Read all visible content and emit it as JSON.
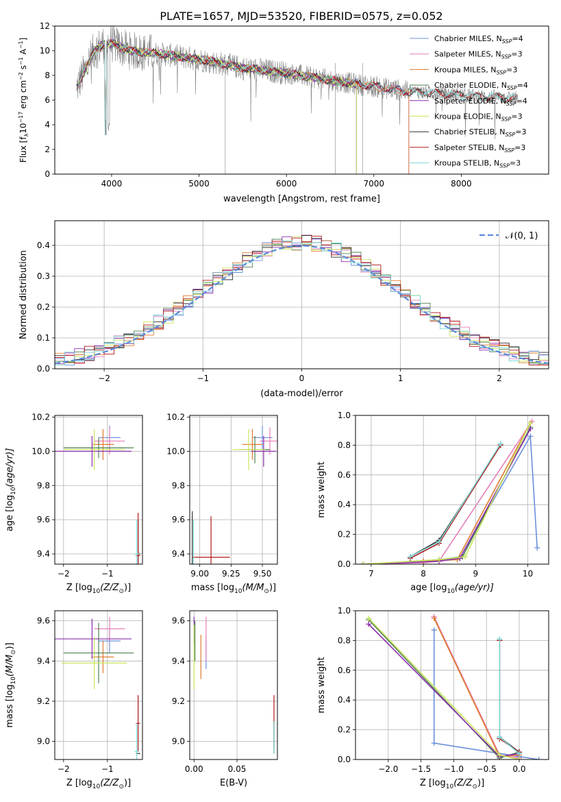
{
  "figure_title": "PLATE=1657, MJD=53520, FIBERID=0575, z=0.052",
  "colors": {
    "Chabrier MILES": "#6a8fdc",
    "Salpeter MILES": "#e67fb8",
    "Kroupa MILES": "#e07a2e",
    "Chabrier ELODIE": "#4f7f4f",
    "Salpeter ELODIE": "#8c2fb0",
    "Kroupa ELODIE": "#c8e65a",
    "Chabrier STELIB": "#2f2f2f",
    "Salpeter STELIB": "#b01515",
    "Kroupa STELIB": "#7dd8d8",
    "data": "#808080",
    "normal": "#5b8bd8"
  },
  "chart_data": [
    {
      "id": "spectrum",
      "type": "line",
      "xlabel": "wavelength [Angstrom, rest frame]",
      "ylabel_main": "Flux [f",
      "ylabel_sub": "λ",
      "ylabel_mid": "10",
      "ylabel_sup": "−17",
      "ylabel_tail": " erg cm",
      "ylabel_sup2": "−2",
      "ylabel_tail2": " s",
      "ylabel_sup3": "−1",
      "ylabel_tail3": " A",
      "ylabel_sup4": "−1",
      "ylabel_end": "]",
      "xlim": [
        3350,
        9000
      ],
      "ylim": [
        0,
        12
      ],
      "xticks": [
        4000,
        5000,
        6000,
        7000,
        8000
      ],
      "yticks": [
        0,
        2,
        4,
        6,
        8,
        10,
        12
      ],
      "grid": false,
      "legend_position": "top-right",
      "legend": [
        {
          "name": "Chabrier MILES",
          "n": "4"
        },
        {
          "name": "Salpeter MILES",
          "n": "3"
        },
        {
          "name": "Kroupa MILES",
          "n": "3"
        },
        {
          "name": "Chabrier ELODIE",
          "n": "4"
        },
        {
          "name": "Salpeter ELODIE",
          "n": "4"
        },
        {
          "name": "Kroupa ELODIE",
          "n": "3"
        },
        {
          "name": "Chabrier STELIB",
          "n": "3"
        },
        {
          "name": "Salpeter STELIB",
          "n": "3"
        },
        {
          "name": "Kroupa STELIB",
          "n": "3"
        }
      ],
      "continuum": {
        "x": [
          3600,
          3700,
          3800,
          3900,
          4000,
          4200,
          4500,
          5000,
          5500,
          6000,
          6500,
          7000,
          7400,
          7800,
          8200,
          8500,
          8700
        ],
        "y": [
          7.0,
          8.5,
          10.0,
          10.5,
          10.6,
          10.0,
          9.8,
          9.3,
          8.6,
          8.2,
          7.6,
          7.1,
          6.7,
          6.5,
          6.3,
          6.2,
          6.1
        ]
      }
    },
    {
      "id": "residuals",
      "type": "histogram",
      "xlabel": "(data-model)/error",
      "ylabel": "Normed distribution",
      "xlim": [
        -2.5,
        2.5
      ],
      "ylim": [
        0,
        0.48
      ],
      "xticks": [
        -2,
        -1,
        0,
        1,
        2
      ],
      "yticks": [
        0.0,
        0.1,
        0.2,
        0.3,
        0.4
      ],
      "grid": true,
      "legend_position": "top-right",
      "legend_label": "𝒩(0, 1)"
    },
    {
      "id": "age-vs-Z",
      "type": "errorbar",
      "xlabel": "Z [log",
      "xlabel_sub": "10",
      "xlabel_tail": "(Z/Z",
      "xlabel_sub2": "⊙",
      "xlabel_end": ")]",
      "ylabel": "age  [log",
      "ylabel_sub": "10",
      "ylabel_tail": "(age/yr)]",
      "xlim": [
        -2.2,
        -0.2
      ],
      "ylim": [
        9.34,
        10.21
      ],
      "xticks": [
        -2,
        -1
      ],
      "yticks": [
        9.4,
        9.6,
        9.8,
        10.0,
        10.2
      ],
      "grid": true,
      "points": [
        {
          "s": "Chabrier MILES",
          "x": -0.95,
          "xerr": 0.25,
          "y": 10.08,
          "yerr": 0.07
        },
        {
          "s": "Salpeter MILES",
          "x": -0.95,
          "xerr": 0.35,
          "y": 10.06,
          "yerr": 0.08
        },
        {
          "s": "Kroupa MILES",
          "x": -1.1,
          "xerr": 0.25,
          "y": 10.04,
          "yerr": 0.09
        },
        {
          "s": "Chabrier ELODIE",
          "x": -1.2,
          "xerr": 0.8,
          "y": 10.02,
          "yerr": 0.06
        },
        {
          "s": "Salpeter ELODIE",
          "x": -1.35,
          "xerr": 0.9,
          "y": 10.0,
          "yerr": 0.09
        },
        {
          "s": "Kroupa ELODIE",
          "x": -1.3,
          "xerr": 0.7,
          "y": 10.01,
          "yerr": 0.12
        },
        {
          "s": "Chabrier STELIB",
          "x": -0.3,
          "xerr": 0.05,
          "y": 9.4,
          "yerr": 0.2
        },
        {
          "s": "Salpeter STELIB",
          "x": -0.3,
          "xerr": 0.05,
          "y": 9.39,
          "yerr": 0.25
        },
        {
          "s": "Kroupa STELIB",
          "x": -0.33,
          "xerr": 0.05,
          "y": 9.4,
          "yerr": 0.2
        }
      ]
    },
    {
      "id": "age-vs-mass",
      "type": "errorbar",
      "xlabel": "mass [log",
      "xlabel_sub": "10",
      "xlabel_tail": "(M/M",
      "xlabel_sub2": "⊙",
      "xlabel_end": ")]",
      "xlim": [
        8.92,
        9.62
      ],
      "ylim": [
        9.34,
        10.21
      ],
      "xticks": [
        9.0,
        9.25,
        9.5
      ],
      "yticks": [
        9.4,
        9.6,
        9.8,
        10.0,
        10.2
      ],
      "grid": true,
      "points": [
        {
          "s": "Chabrier MILES",
          "x": 9.5,
          "xerr": 0.08,
          "y": 10.08,
          "yerr": 0.07
        },
        {
          "s": "Salpeter MILES",
          "x": 9.56,
          "xerr": 0.08,
          "y": 10.06,
          "yerr": 0.08
        },
        {
          "s": "Kroupa MILES",
          "x": 9.42,
          "xerr": 0.08,
          "y": 10.04,
          "yerr": 0.09
        },
        {
          "s": "Chabrier ELODIE",
          "x": 9.44,
          "xerr": 0.12,
          "y": 10.01,
          "yerr": 0.08
        },
        {
          "s": "Salpeter ELODIE",
          "x": 9.51,
          "xerr": 0.1,
          "y": 10.0,
          "yerr": 0.09
        },
        {
          "s": "Kroupa ELODIE",
          "x": 9.39,
          "xerr": 0.13,
          "y": 10.01,
          "yerr": 0.12
        },
        {
          "s": "Chabrier STELIB",
          "x": 8.94,
          "xerr": 0.0,
          "y": 9.4,
          "yerr": 0.25
        },
        {
          "s": "Salpeter STELIB",
          "x": 9.09,
          "xerr": 0.15,
          "y": 9.38,
          "yerr": 0.24
        },
        {
          "s": "Kroupa STELIB",
          "x": 8.95,
          "xerr": 0.0,
          "y": 9.4,
          "yerr": 0.2
        }
      ]
    },
    {
      "id": "mass-weight-vs-age",
      "type": "line",
      "xlabel": "age  [log",
      "xlabel_sub": "10",
      "xlabel_tail": "(age/yr)]",
      "ylabel": "mass weight",
      "xlim": [
        6.7,
        10.4
      ],
      "ylim": [
        0,
        1
      ],
      "xticks": [
        7,
        8,
        9,
        10
      ],
      "yticks": [
        0.0,
        0.2,
        0.4,
        0.6,
        0.8,
        1.0
      ],
      "grid": true,
      "series": [
        {
          "s": "Chabrier MILES",
          "x": [
            6.85,
            8.0,
            8.7,
            10.05,
            10.18
          ],
          "y": [
            0.0,
            0.02,
            0.04,
            0.86,
            0.11
          ]
        },
        {
          "s": "Salpeter MILES",
          "x": [
            6.85,
            8.0,
            8.3,
            10.08
          ],
          "y": [
            0.0,
            0.01,
            0.02,
            0.96
          ]
        },
        {
          "s": "Kroupa MILES",
          "x": [
            6.85,
            8.0,
            8.65,
            10.05
          ],
          "y": [
            0.0,
            0.02,
            0.03,
            0.95
          ]
        },
        {
          "s": "Chabrier ELODIE",
          "x": [
            6.85,
            8.3,
            8.75,
            10.05
          ],
          "y": [
            0.0,
            0.03,
            0.05,
            0.92
          ]
        },
        {
          "s": "Salpeter ELODIE",
          "x": [
            6.85,
            8.3,
            8.7,
            10.05
          ],
          "y": [
            0.0,
            0.02,
            0.04,
            0.91
          ]
        },
        {
          "s": "Kroupa ELODIE",
          "x": [
            6.85,
            8.3,
            8.8,
            10.05
          ],
          "y": [
            0.0,
            0.03,
            0.05,
            0.95
          ]
        },
        {
          "s": "Chabrier STELIB",
          "x": [
            7.75,
            8.3,
            9.48
          ],
          "y": [
            0.05,
            0.16,
            0.8
          ]
        },
        {
          "s": "Salpeter STELIB",
          "x": [
            7.75,
            8.3,
            9.48
          ],
          "y": [
            0.04,
            0.14,
            0.8
          ]
        },
        {
          "s": "Kroupa STELIB",
          "x": [
            7.75,
            8.3,
            9.48
          ],
          "y": [
            0.05,
            0.15,
            0.81
          ]
        }
      ]
    },
    {
      "id": "mass-vs-Z",
      "type": "errorbar",
      "xlabel": "Z [log",
      "xlabel_sub": "10",
      "xlabel_tail": "(Z/Z",
      "xlabel_sub2": "⊙",
      "xlabel_end": ")]",
      "ylabel": "mass [log",
      "ylabel_sub": "10",
      "ylabel_tail": "(M/M",
      "ylabel_sub2": "⊙",
      "ylabel_end": ")]",
      "xlim": [
        -2.2,
        -0.2
      ],
      "ylim": [
        8.91,
        9.65
      ],
      "xticks": [
        -2,
        -1
      ],
      "yticks": [
        9.0,
        9.2,
        9.4,
        9.6
      ],
      "grid": true,
      "points": [
        {
          "s": "Chabrier MILES",
          "x": -0.95,
          "xerr": 0.25,
          "y": 9.5,
          "yerr": 0.06
        },
        {
          "s": "Salpeter MILES",
          "x": -0.95,
          "xerr": 0.35,
          "y": 9.56,
          "yerr": 0.06
        },
        {
          "s": "Kroupa MILES",
          "x": -1.1,
          "xerr": 0.25,
          "y": 9.42,
          "yerr": 0.08
        },
        {
          "s": "Chabrier ELODIE",
          "x": -1.2,
          "xerr": 0.8,
          "y": 9.44,
          "yerr": 0.15
        },
        {
          "s": "Salpeter ELODIE",
          "x": -1.35,
          "xerr": 0.9,
          "y": 9.51,
          "yerr": 0.1
        },
        {
          "s": "Kroupa ELODIE",
          "x": -1.3,
          "xerr": 0.75,
          "y": 9.39,
          "yerr": 0.13
        },
        {
          "s": "Chabrier STELIB",
          "x": -0.3,
          "xerr": 0.05,
          "y": 8.94,
          "yerr": 0.0
        },
        {
          "s": "Salpeter STELIB",
          "x": -0.3,
          "xerr": 0.05,
          "y": 9.09,
          "yerr": 0.14
        },
        {
          "s": "Kroupa STELIB",
          "x": -0.33,
          "xerr": 0.05,
          "y": 8.95,
          "yerr": 0.14
        }
      ]
    },
    {
      "id": "mass-vs-ebv",
      "type": "errorbar",
      "xlabel": "E(B-V)",
      "xlim": [
        -0.005,
        0.097
      ],
      "ylim": [
        8.91,
        9.65
      ],
      "xticks": [
        0.0,
        0.05
      ],
      "yticks": [
        9.0,
        9.2,
        9.4,
        9.6
      ],
      "grid": true,
      "points": [
        {
          "s": "Chabrier MILES",
          "x": 0.014,
          "xerr": 0,
          "y": 9.44,
          "yerr": 0.08
        },
        {
          "s": "Salpeter MILES",
          "x": 0.014,
          "xerr": 0,
          "y": 9.51,
          "yerr": 0.11
        },
        {
          "s": "Kroupa MILES",
          "x": 0.008,
          "xerr": 0,
          "y": 9.42,
          "yerr": 0.11
        },
        {
          "s": "Chabrier ELODIE",
          "x": 0.001,
          "xerr": 0,
          "y": 9.5,
          "yerr": 0.1
        },
        {
          "s": "Salpeter ELODIE",
          "x": 0.0,
          "xerr": 0,
          "y": 9.55,
          "yerr": 0.07
        },
        {
          "s": "Kroupa ELODIE",
          "x": 0.0,
          "xerr": 0,
          "y": 9.42,
          "yerr": 0.16
        },
        {
          "s": "Chabrier STELIB",
          "x": 0.093,
          "xerr": 0,
          "y": 9.02,
          "yerr": 0.08
        },
        {
          "s": "Salpeter STELIB",
          "x": 0.093,
          "xerr": 0,
          "y": 9.1,
          "yerr": 0.13
        },
        {
          "s": "Kroupa STELIB",
          "x": 0.093,
          "xerr": 0,
          "y": 9.02,
          "yerr": 0.08
        }
      ]
    },
    {
      "id": "mass-weight-vs-Z",
      "type": "line",
      "xlabel": "Z [log",
      "xlabel_sub": "10",
      "xlabel_tail": "(Z/Z",
      "xlabel_sub2": "⊙",
      "xlabel_end": ")]",
      "ylabel": "mass weight",
      "xlim": [
        -2.5,
        0.45
      ],
      "ylim": [
        0,
        1
      ],
      "xticks": [
        -2.0,
        -1.5,
        -1.0,
        -0.5,
        0.0
      ],
      "yticks": [
        0.0,
        0.2,
        0.4,
        0.6,
        0.8,
        1.0
      ],
      "grid": true,
      "series": [
        {
          "s": "Chabrier MILES",
          "x": [
            -1.3,
            -1.3,
            0.0,
            0.3
          ],
          "y": [
            0.87,
            0.11,
            0.02,
            0.0
          ]
        },
        {
          "s": "Salpeter MILES",
          "x": [
            -1.3,
            -0.3,
            0.0
          ],
          "y": [
            0.96,
            0.03,
            0.01
          ]
        },
        {
          "s": "Kroupa MILES",
          "x": [
            -1.3,
            -0.3,
            0.0
          ],
          "y": [
            0.95,
            0.02,
            0.03
          ]
        },
        {
          "s": "Chabrier ELODIE",
          "x": [
            -2.3,
            -0.3,
            0.0
          ],
          "y": [
            0.94,
            0.01,
            0.05
          ]
        },
        {
          "s": "Salpeter ELODIE",
          "x": [
            -2.3,
            -0.3,
            0.0
          ],
          "y": [
            0.91,
            0.02,
            0.04
          ]
        },
        {
          "s": "Kroupa ELODIE",
          "x": [
            -2.3,
            -0.3,
            0.0
          ],
          "y": [
            0.95,
            0.03,
            0.0
          ]
        },
        {
          "s": "Chabrier STELIB",
          "x": [
            -0.3,
            -0.3,
            0.0
          ],
          "y": [
            0.8,
            0.15,
            0.05
          ]
        },
        {
          "s": "Salpeter STELIB",
          "x": [
            -0.3,
            -0.3,
            0.0
          ],
          "y": [
            0.8,
            0.14,
            0.05
          ]
        },
        {
          "s": "Kroupa STELIB",
          "x": [
            -0.3,
            -0.3,
            0.0
          ],
          "y": [
            0.81,
            0.15,
            0.04
          ]
        }
      ]
    }
  ]
}
